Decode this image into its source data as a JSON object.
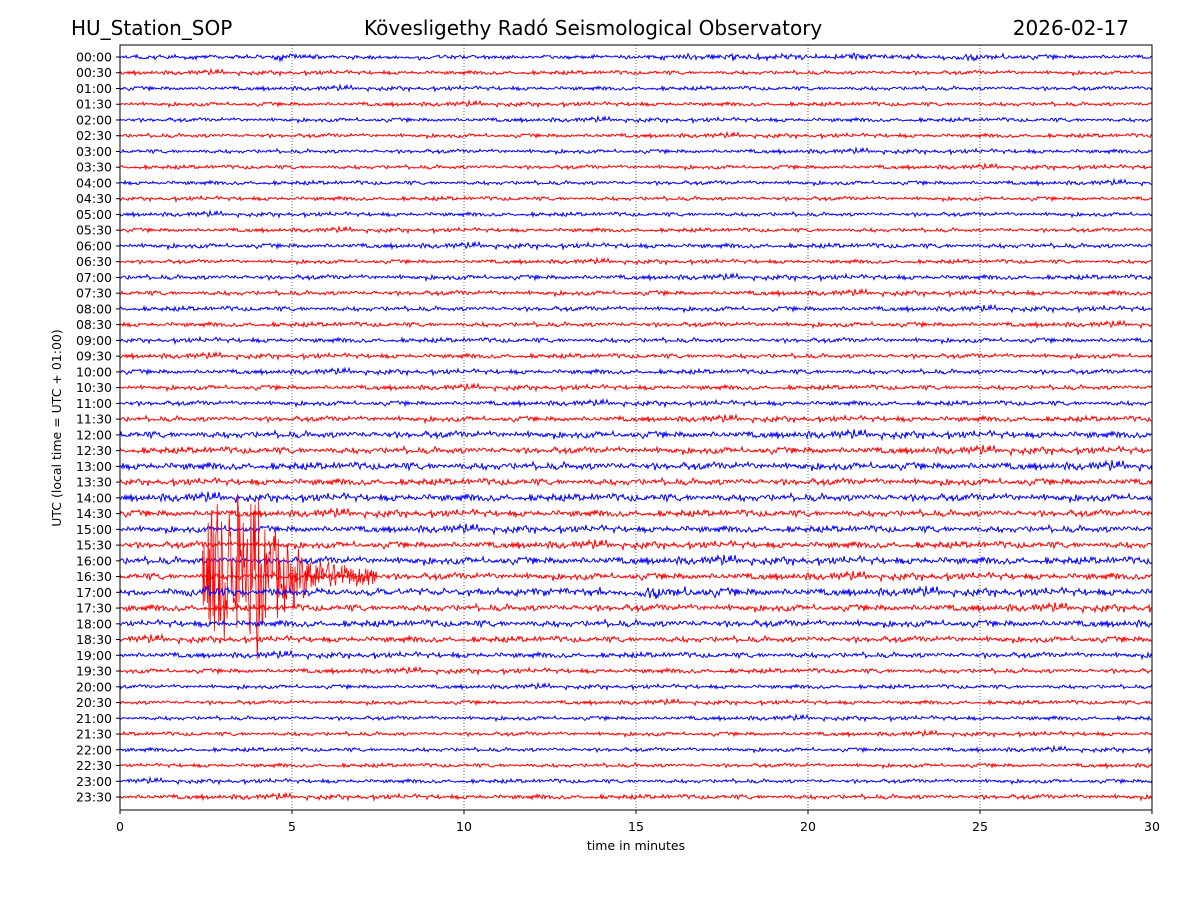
{
  "header": {
    "station": "HU_Station_SOP",
    "observatory": "Kövesligethy Radó Seismological Observatory",
    "date": "2026-02-17"
  },
  "chart_data": {
    "type": "line",
    "title": "Kövesligethy Radó Seismological Observatory",
    "xlabel": "time in minutes",
    "ylabel": "UTC (local time = UTC + 01:00)",
    "xlim": [
      0,
      30
    ],
    "xticks": [
      "0",
      "5",
      "10",
      "15",
      "20",
      "25",
      "30"
    ],
    "grid": "vertical dotted at x ticks",
    "colors": [
      "#0000ff",
      "#ff0000"
    ],
    "rows": [
      "00:00",
      "00:30",
      "01:00",
      "01:30",
      "02:00",
      "02:30",
      "03:00",
      "03:30",
      "04:00",
      "04:30",
      "05:00",
      "05:30",
      "06:00",
      "06:30",
      "07:00",
      "07:30",
      "08:00",
      "08:30",
      "09:00",
      "09:30",
      "10:00",
      "10:30",
      "11:00",
      "11:30",
      "12:00",
      "12:30",
      "13:00",
      "13:30",
      "14:00",
      "14:30",
      "15:00",
      "15:30",
      "16:00",
      "16:30",
      "17:00",
      "17:30",
      "18:00",
      "18:30",
      "19:00",
      "19:30",
      "20:00",
      "20:30",
      "21:00",
      "21:30",
      "22:00",
      "22:30",
      "23:00",
      "23:30"
    ],
    "noise_level": [
      3,
      3,
      3,
      3,
      3,
      3,
      3,
      3,
      3,
      3,
      3,
      3,
      3.5,
      3,
      3.5,
      3.5,
      3.5,
      3.5,
      3.5,
      3.5,
      3.5,
      3.5,
      3.5,
      4,
      5,
      5,
      5.5,
      5,
      5.5,
      5,
      5,
      5,
      5.5,
      5,
      5.5,
      5,
      5,
      4.5,
      4,
      3.5,
      3,
      3,
      3,
      3,
      3,
      3,
      3,
      3.5
    ],
    "event": {
      "row": "16:30",
      "onset_minute": 2.4,
      "end_minute": 7.5,
      "peak_rows_span": 6
    }
  }
}
